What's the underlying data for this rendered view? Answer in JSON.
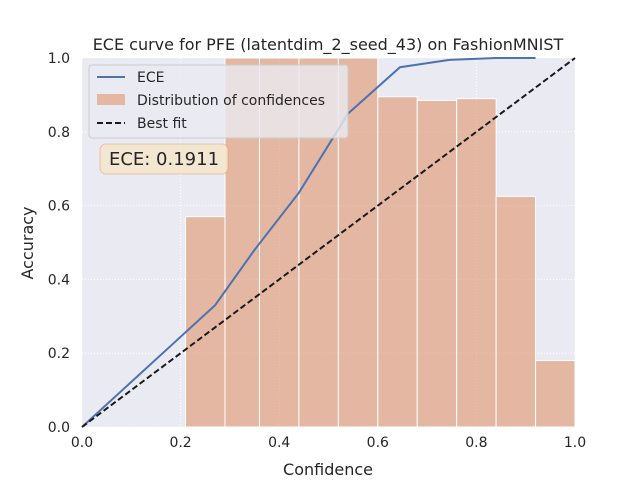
{
  "chart_data": {
    "type": "line",
    "title": "ECE curve for PFE (latentdim_2_seed_43) on FashionMNIST",
    "xlabel": "Confidence",
    "ylabel": "Accuracy",
    "xlim": [
      0,
      1
    ],
    "ylim": [
      0,
      1
    ],
    "xticks": [
      "0.0",
      "0.2",
      "0.4",
      "0.6",
      "0.8",
      "1.0"
    ],
    "yticks": [
      "0.0",
      "0.2",
      "0.4",
      "0.6",
      "0.8",
      "1.0"
    ],
    "grid": true,
    "legend_position": "top-left",
    "ece_annotation": "ECE: 0.1911",
    "colors": {
      "ece_line": "#4c72b0",
      "histogram": "#dd8452",
      "best_fit": "#1a1a1a",
      "background": "#eaeaf2",
      "annotation_box": "#f5e6cc"
    },
    "series": [
      {
        "name": "ECE",
        "x": [
          0.0,
          0.18,
          0.27,
          0.35,
          0.44,
          0.54,
          0.645,
          0.745,
          0.84,
          0.92
        ],
        "y": [
          0.0,
          0.22,
          0.33,
          0.48,
          0.635,
          0.85,
          0.975,
          0.995,
          1.0,
          1.0
        ]
      },
      {
        "name": "Best fit",
        "x": [
          0,
          1
        ],
        "y": [
          0,
          1
        ]
      }
    ],
    "histogram": {
      "name": "Distribution of confidences",
      "bins": [
        {
          "x0": 0.21,
          "x1": 0.29,
          "value": 0.57
        },
        {
          "x0": 0.29,
          "x1": 0.36,
          "value": 1.0
        },
        {
          "x0": 0.36,
          "x1": 0.44,
          "value": 1.0
        },
        {
          "x0": 0.44,
          "x1": 0.52,
          "value": 1.0
        },
        {
          "x0": 0.52,
          "x1": 0.6,
          "value": 1.0
        },
        {
          "x0": 0.6,
          "x1": 0.68,
          "value": 0.895
        },
        {
          "x0": 0.68,
          "x1": 0.76,
          "value": 0.885
        },
        {
          "x0": 0.76,
          "x1": 0.84,
          "value": 0.89
        },
        {
          "x0": 0.84,
          "x1": 0.92,
          "value": 0.625
        },
        {
          "x0": 0.92,
          "x1": 1.0,
          "value": 0.18
        }
      ]
    }
  }
}
